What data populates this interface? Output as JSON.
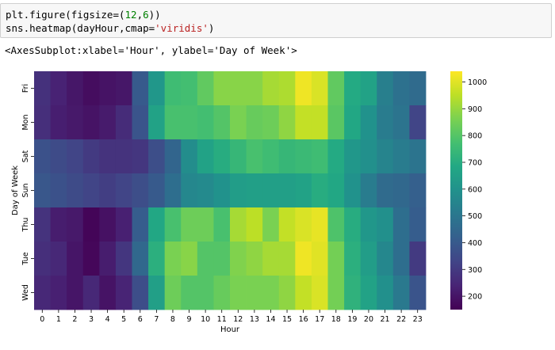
{
  "code_cell": {
    "line1": {
      "prefix": "plt.figure(figsize=(",
      "num1": "12",
      "comma": ",",
      "num2": "6",
      "suffix": "))"
    },
    "line2": {
      "prefix": "sns.heatmap(dayHour,cmap=",
      "str": "'viridis'",
      "suffix": ")"
    }
  },
  "output_text": "<AxesSubplot:xlabel='Hour', ylabel='Day of Week'>",
  "colormap": "viridis",
  "chart_data": {
    "type": "heatmap",
    "xlabel": "Hour",
    "ylabel": "Day of Week",
    "x_categories": [
      "0",
      "1",
      "2",
      "3",
      "4",
      "5",
      "6",
      "7",
      "8",
      "9",
      "10",
      "11",
      "12",
      "13",
      "14",
      "15",
      "16",
      "17",
      "18",
      "19",
      "20",
      "21",
      "22",
      "23"
    ],
    "y_categories": [
      "Fri",
      "Mon",
      "Sat",
      "Sun",
      "Thu",
      "Tue",
      "Wed"
    ],
    "values": [
      [
        275,
        235,
        205,
        180,
        195,
        205,
        400,
        620,
        760,
        770,
        820,
        880,
        880,
        880,
        920,
        930,
        1020,
        990,
        820,
        690,
        660,
        530,
        480,
        460
      ],
      [
        270,
        225,
        210,
        195,
        215,
        260,
        380,
        660,
        780,
        780,
        770,
        800,
        860,
        830,
        840,
        890,
        960,
        960,
        810,
        680,
        600,
        520,
        490,
        330
      ],
      [
        370,
        350,
        330,
        300,
        280,
        280,
        290,
        360,
        440,
        580,
        660,
        700,
        740,
        780,
        760,
        740,
        750,
        760,
        690,
        620,
        590,
        550,
        520,
        490
      ],
      [
        390,
        370,
        350,
        330,
        310,
        330,
        360,
        400,
        470,
        560,
        570,
        600,
        640,
        650,
        650,
        650,
        660,
        700,
        680,
        600,
        520,
        460,
        450,
        420
      ],
      [
        280,
        220,
        210,
        160,
        190,
        230,
        410,
        680,
        780,
        840,
        840,
        780,
        920,
        950,
        860,
        960,
        990,
        1010,
        790,
        700,
        620,
        590,
        470,
        410
      ],
      [
        270,
        250,
        200,
        165,
        220,
        290,
        450,
        710,
        860,
        880,
        800,
        800,
        870,
        890,
        920,
        920,
        1020,
        1000,
        850,
        710,
        640,
        560,
        470,
        300
      ],
      [
        250,
        230,
        200,
        250,
        195,
        240,
        360,
        650,
        840,
        800,
        800,
        830,
        860,
        860,
        860,
        890,
        960,
        990,
        850,
        720,
        660,
        590,
        510,
        380
      ]
    ],
    "colorbar": {
      "min": 150,
      "max": 1040,
      "ticks": [
        200,
        300,
        400,
        500,
        600,
        700,
        800,
        900,
        1000
      ]
    }
  }
}
